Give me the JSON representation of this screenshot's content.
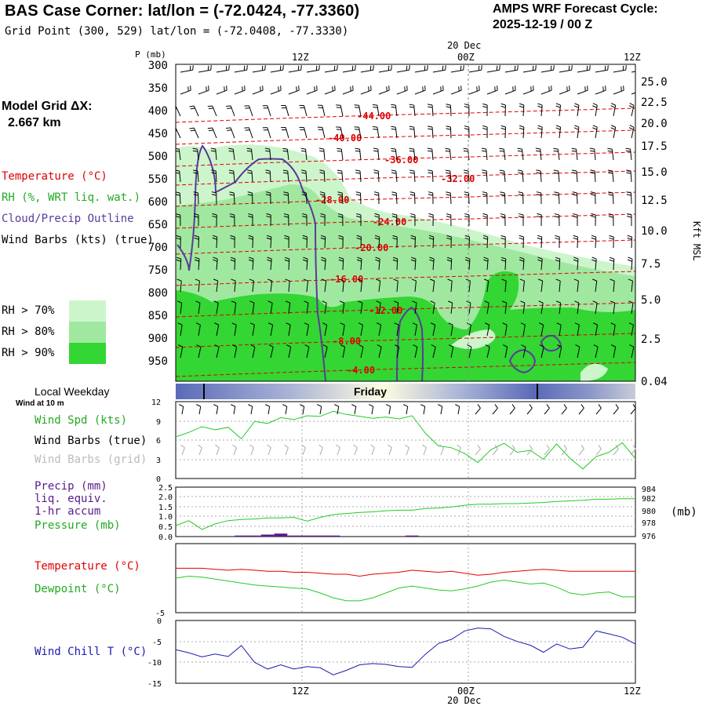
{
  "header": {
    "title": "BAS Case Corner:  lat/lon = (-72.0424, -77.3360)",
    "grid_point": "Grid Point (300, 529) lat/lon = (-72.0408, -77.3330)",
    "forecast_label": "AMPS WRF Forecast Cycle:",
    "forecast_cycle": "2025-12-19 / 00  Z"
  },
  "model_grid": {
    "label": "Model Grid ΔX:",
    "value": "2.667 km"
  },
  "legend": {
    "temperature": "Temperature (°C)",
    "rh": "RH (%, WRT liq. wat.)",
    "cloud": "Cloud/Precip Outline",
    "wind": "Wind Barbs (kts) (true)",
    "rh70": "RH > 70%",
    "rh80": "RH > 80%",
    "rh90": "RH > 90%"
  },
  "colors": {
    "rh70": "#ccf5cc",
    "rh80": "#a0e8a0",
    "rh90": "#33d633",
    "temp": "#e00000",
    "cloud": "#5a3a9a",
    "green_line": "#22cc22",
    "blue_line": "#1a1ab0",
    "precip": "#5a1a8a",
    "day_band": "#5a6ab8"
  },
  "time_axis": {
    "top_date": "20 Dec",
    "top_ticks": [
      "12Z",
      "00Z",
      "12Z"
    ],
    "bottom_ticks": [
      "12Z",
      "00Z",
      "12Z"
    ],
    "bottom_date": "20 Dec"
  },
  "weekday": {
    "label": "Local Weekday",
    "sub": "Wind at 10 m",
    "day": "Friday"
  },
  "panels": {
    "wind": {
      "spd": "Wind Spd (kts)",
      "barbs_true": "Wind Barbs (true)",
      "barbs_grid": "Wind Barbs (grid)"
    },
    "precip": {
      "l1": "Precip (mm)",
      "l2": "liq. equiv.",
      "l3": "1-hr accum",
      "l4": "Pressure (mb)",
      "unit": "(mb)"
    },
    "temp": {
      "t": "Temperature (°C)",
      "d": "Dewpoint (°C)"
    },
    "chill": {
      "label": "Wind Chill T (°C)"
    }
  },
  "chart_data": [
    {
      "type": "heatmap",
      "ylabel": "P (mb)",
      "y_ticks": [
        "300",
        "350",
        "400",
        "450",
        "500",
        "550",
        "600",
        "650",
        "700",
        "750",
        "800",
        "850",
        "900",
        "950"
      ],
      "right_axis_label": "Kft MSL",
      "right_ticks": [
        "25.0",
        "22.5",
        "20.0",
        "17.5",
        "15.0",
        "12.5",
        "10.0",
        "7.5",
        "5.0",
        "2.5",
        "0.04"
      ],
      "temperature_contours": [
        "-44.00",
        "-40.00",
        "-36.00",
        "-32.00",
        "-28.00",
        "-24.00",
        "-20.00",
        "-16.00",
        "-12.00",
        "-8.00",
        "-4.00"
      ]
    },
    {
      "type": "line",
      "y_ticks": [
        "0",
        "3",
        "6",
        "9",
        "12"
      ],
      "ylim": [
        0,
        12
      ],
      "series": [
        {
          "values": [
            6.5,
            7.2,
            8.1,
            7.6,
            8.0,
            6.2,
            8.9,
            8.6,
            9.5,
            9.2,
            9.8,
            9.7,
            10.5,
            10.0,
            9.7,
            9.4,
            9.6,
            9.3,
            9.8,
            7.1,
            5.1,
            4.8,
            3.9,
            2.5,
            4.5,
            5.5,
            4.1,
            4.4,
            3.0,
            5.4,
            3.2,
            1.5,
            3.4,
            4.1,
            5.6,
            3.1
          ]
        }
      ]
    },
    {
      "type": "line",
      "y_ticks": [
        "0.0",
        "0.5",
        "1.0",
        "1.5",
        "2.0",
        "2.5"
      ],
      "right_ticks": [
        "984",
        "982",
        "980",
        "978",
        "976"
      ],
      "series": [
        {
          "values": [
            977.5,
            978.4,
            976.8,
            977.8,
            978.4,
            978.6,
            978.7,
            978.9,
            978.9,
            979.0,
            978.3,
            979.0,
            979.5,
            979.7,
            979.9,
            980.0,
            980.2,
            980.3,
            980.3,
            980.6,
            980.7,
            980.9,
            981.2,
            981.4,
            981.4,
            981.5,
            981.5,
            981.6,
            981.7,
            981.9,
            982.0,
            982.1,
            982.3,
            982.3,
            982.4,
            982.4
          ]
        },
        {
          "values": [
            0,
            0,
            0,
            0,
            0,
            0.05,
            0.05,
            0.1,
            0.15,
            0.05,
            0.05,
            0.05,
            0.05,
            0,
            0,
            0,
            0,
            0,
            0.05,
            0,
            0,
            0,
            0,
            0,
            0,
            0,
            0,
            0,
            0,
            0,
            0,
            0,
            0,
            0,
            0,
            0
          ]
        }
      ]
    },
    {
      "type": "line",
      "y_ticks": [
        "-5"
      ],
      "series": [
        {
          "values": [
            -1.0,
            -1.0,
            -1.0,
            -1.1,
            -1.2,
            -1.1,
            -1.2,
            -1.3,
            -1.3,
            -1.4,
            -1.4,
            -1.5,
            -1.6,
            -1.6,
            -1.8,
            -1.6,
            -1.5,
            -1.4,
            -1.2,
            -1.3,
            -1.4,
            -1.3,
            -1.5,
            -1.7,
            -1.6,
            -1.4,
            -1.3,
            -1.2,
            -1.1,
            -1.2,
            -1.3,
            -1.3,
            -1.3,
            -1.3,
            -1.3,
            -1.3
          ]
        },
        {
          "values": [
            -2.0,
            -1.8,
            -1.9,
            -2.1,
            -2.3,
            -2.5,
            -2.7,
            -2.8,
            -2.9,
            -3.0,
            -3.1,
            -3.5,
            -4.0,
            -4.3,
            -4.3,
            -4.0,
            -3.5,
            -3.0,
            -2.8,
            -3.0,
            -3.2,
            -3.3,
            -3.1,
            -2.8,
            -2.4,
            -2.2,
            -2.4,
            -2.6,
            -2.5,
            -2.9,
            -3.5,
            -3.7,
            -3.5,
            -3.4,
            -3.9,
            -3.9
          ]
        }
      ]
    },
    {
      "type": "line",
      "y_ticks": [
        "0",
        "-5",
        "-10",
        "-15"
      ],
      "ylim": [
        -15,
        0
      ],
      "series": [
        {
          "values": [
            -7.0,
            -7.7,
            -8.7,
            -8.0,
            -8.6,
            -6.0,
            -10.0,
            -11.6,
            -10.6,
            -11.6,
            -11.0,
            -11.3,
            -13.0,
            -11.9,
            -10.6,
            -10.3,
            -10.5,
            -11.0,
            -11.2,
            -8.1,
            -5.5,
            -4.5,
            -2.5,
            -1.8,
            -2.0,
            -3.8,
            -5.0,
            -5.9,
            -7.6,
            -5.6,
            -6.8,
            -6.4,
            -2.5,
            -3.2,
            -4.0,
            -5.6
          ]
        }
      ]
    }
  ]
}
